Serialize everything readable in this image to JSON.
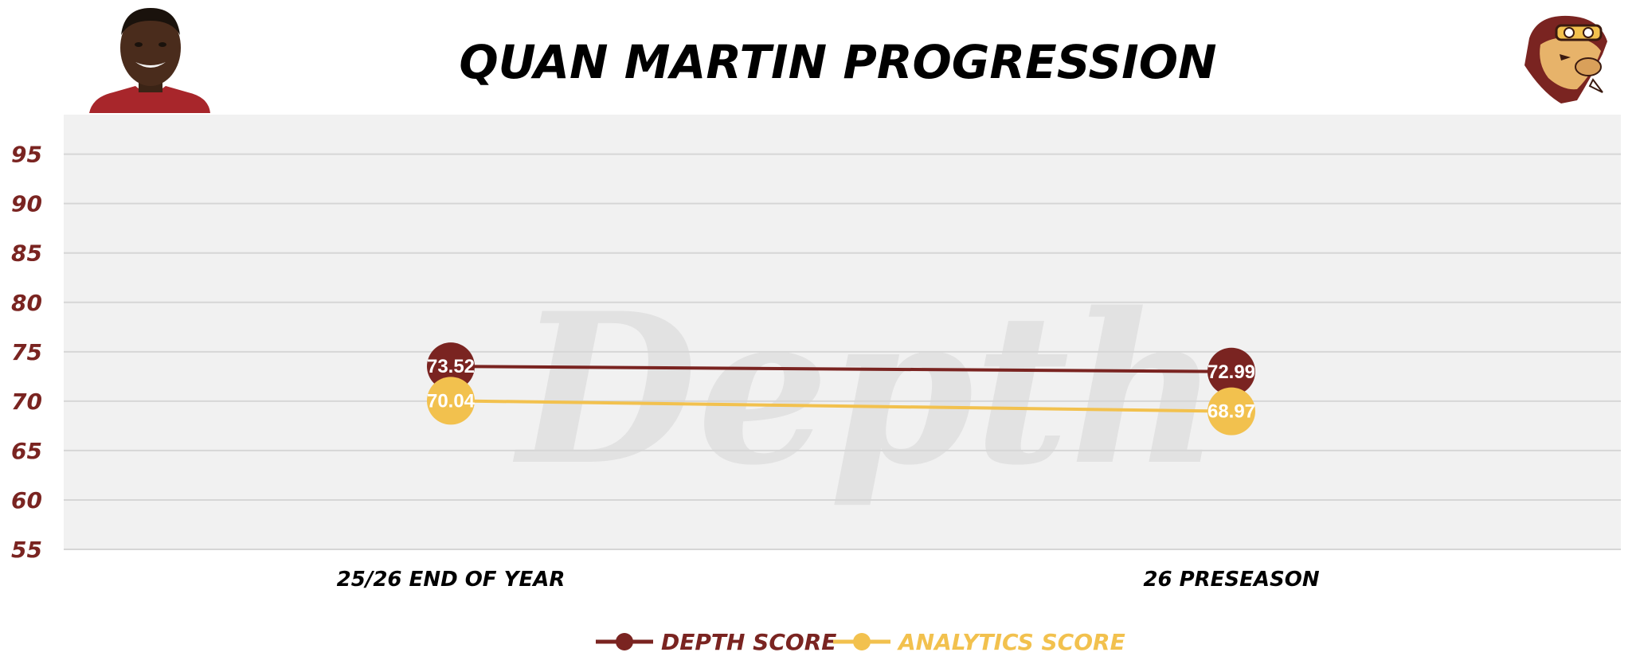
{
  "colors": {
    "depth": "#7a2421",
    "analytics": "#f2c14e",
    "plot_bg": "#f1f1f1",
    "grid": "#d6d6d6",
    "title": "#000000",
    "ytick": "#7a2421",
    "xtick": "#000000",
    "datalabel": "#ffffff",
    "watermark": "#e2e2e2"
  },
  "icons": {
    "player_photo": "player-headshot-icon",
    "team_logo": "hog-mascot-logo-icon"
  },
  "watermark_text": "Depth",
  "chart_data": {
    "type": "line",
    "title": "QUAN MARTIN PROGRESSION",
    "xlabel": "",
    "ylabel": "",
    "categories": [
      "25/26 END OF YEAR",
      "26 PRESEASON"
    ],
    "ylim": [
      55,
      99
    ],
    "yticks": [
      55,
      60,
      65,
      70,
      75,
      80,
      85,
      90,
      95
    ],
    "grid": true,
    "legend_position": "bottom-center",
    "series": [
      {
        "name": "DEPTH SCORE",
        "values": [
          73.52,
          72.99
        ],
        "labels": [
          "73.52",
          "72.99"
        ]
      },
      {
        "name": "ANALYTICS SCORE",
        "values": [
          70.04,
          68.97
        ],
        "labels": [
          "70.04",
          "68.97"
        ]
      }
    ]
  }
}
